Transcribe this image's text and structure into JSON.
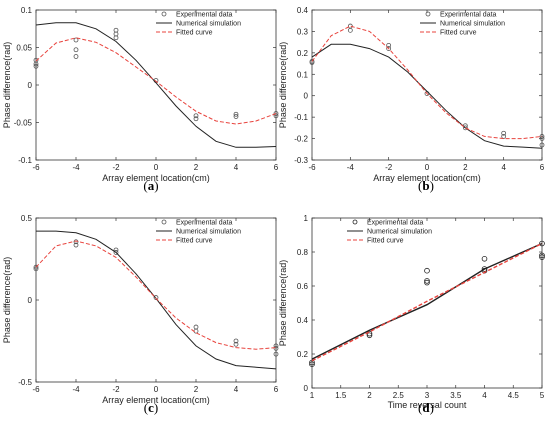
{
  "chart_data": [
    {
      "id": "a",
      "type": "line",
      "caption": "(a)",
      "xlabel": "Array element location(cm)",
      "ylabel": "Phase difference(rad)",
      "xlim": [
        -6,
        6
      ],
      "ylim": [
        -0.1,
        0.1
      ],
      "xticks": [
        -6,
        -4,
        -2,
        0,
        2,
        4,
        6
      ],
      "yticks": [
        -0.1,
        -0.05,
        0,
        0.05,
        0.1
      ],
      "xtick_labels": [
        "-6",
        "-4",
        "-2",
        "0",
        "2",
        "4",
        "6"
      ],
      "ytick_labels": [
        "-0.1",
        "-0.05",
        "0",
        "0.05",
        "0.1"
      ],
      "legend_position": "top-right",
      "legend": [
        "Experimental data",
        "Numerical simulation",
        "Fitted curve"
      ],
      "grid": false,
      "series": [
        {
          "name": "Experimental data",
          "kind": "scatter",
          "color": "#555555",
          "x": [
            -6,
            -6,
            -6,
            -4,
            -4,
            -4,
            -2,
            -2,
            -2,
            0,
            2,
            2,
            4,
            4,
            6,
            6
          ],
          "y": [
            0.033,
            0.028,
            0.025,
            0.06,
            0.047,
            0.038,
            0.073,
            0.068,
            0.063,
            0.006,
            -0.041,
            -0.045,
            -0.039,
            -0.042,
            -0.038,
            -0.041
          ]
        },
        {
          "name": "Numerical simulation",
          "kind": "line",
          "color": "#222222",
          "dash": "",
          "x": [
            -6,
            -5,
            -4,
            -3,
            -2,
            -1,
            0,
            1,
            2,
            3,
            4,
            5,
            6
          ],
          "y": [
            0.08,
            0.083,
            0.083,
            0.075,
            0.058,
            0.033,
            0.003,
            -0.028,
            -0.055,
            -0.075,
            -0.083,
            -0.083,
            -0.082
          ]
        },
        {
          "name": "Fitted curve",
          "kind": "line",
          "color": "#e8433d",
          "dash": "4,2",
          "x": [
            -6,
            -5,
            -4,
            -3,
            -2,
            -1,
            0,
            1,
            2,
            3,
            4,
            5,
            6
          ],
          "y": [
            0.032,
            0.056,
            0.063,
            0.057,
            0.043,
            0.024,
            0.005,
            -0.016,
            -0.035,
            -0.048,
            -0.052,
            -0.048,
            -0.038
          ]
        }
      ]
    },
    {
      "id": "b",
      "type": "line",
      "caption": "(b)",
      "xlabel": "Array element location(cm)",
      "ylabel": "Phase difference(rad)",
      "xlim": [
        -6,
        6
      ],
      "ylim": [
        -0.3,
        0.4
      ],
      "xticks": [
        -6,
        -4,
        -2,
        0,
        2,
        4,
        6
      ],
      "yticks": [
        -0.3,
        -0.2,
        -0.1,
        0,
        0.1,
        0.2,
        0.3,
        0.4
      ],
      "xtick_labels": [
        "-6",
        "-4",
        "-2",
        "0",
        "2",
        "4",
        "6"
      ],
      "ytick_labels": [
        "-0.3",
        "-0.2",
        "-0.1",
        "0",
        "0.1",
        "0.2",
        "0.3",
        "0.4"
      ],
      "legend_position": "top-right",
      "legend": [
        "Experimental data",
        "Numerical simulation",
        "Fitted curve"
      ],
      "grid": false,
      "series": [
        {
          "name": "Experimental data",
          "kind": "scatter",
          "color": "#555555",
          "x": [
            -6,
            -6,
            -4,
            -4,
            -2,
            -2,
            0,
            2,
            2,
            4,
            4,
            6,
            6,
            6
          ],
          "y": [
            0.16,
            0.155,
            0.325,
            0.305,
            0.235,
            0.22,
            0.01,
            -0.14,
            -0.15,
            -0.175,
            -0.19,
            -0.19,
            -0.2,
            -0.23
          ]
        },
        {
          "name": "Numerical simulation",
          "kind": "line",
          "color": "#222222",
          "dash": "",
          "x": [
            -6,
            -5,
            -4,
            -3,
            -2,
            -1,
            0,
            1,
            2,
            3,
            4,
            5,
            6
          ],
          "y": [
            0.18,
            0.24,
            0.24,
            0.22,
            0.18,
            0.11,
            0.02,
            -0.07,
            -0.15,
            -0.21,
            -0.235,
            -0.24,
            -0.245
          ]
        },
        {
          "name": "Fitted curve",
          "kind": "line",
          "color": "#e8433d",
          "dash": "4,2",
          "x": [
            -6,
            -5,
            -4,
            -3,
            -2,
            -1,
            0,
            1,
            2,
            3,
            4,
            5,
            6
          ],
          "y": [
            0.16,
            0.28,
            0.325,
            0.3,
            0.22,
            0.12,
            0.01,
            -0.08,
            -0.15,
            -0.19,
            -0.2,
            -0.2,
            -0.19
          ]
        }
      ]
    },
    {
      "id": "c",
      "type": "line",
      "caption": "(c)",
      "xlabel": "Array element location(cm)",
      "ylabel": "Phase difference(rad)",
      "xlim": [
        -6,
        6
      ],
      "ylim": [
        -0.5,
        0.5
      ],
      "xticks": [
        -6,
        -4,
        -2,
        0,
        2,
        4,
        6
      ],
      "yticks": [
        -0.5,
        0,
        0.5
      ],
      "xtick_labels": [
        "-6",
        "-4",
        "-2",
        "0",
        "2",
        "4",
        "6"
      ],
      "ytick_labels": [
        "-0.5",
        "0",
        "0.5"
      ],
      "legend_position": "top-right",
      "legend": [
        "Experimental data",
        "Numerical simulation",
        "Fitted curve"
      ],
      "grid": false,
      "series": [
        {
          "name": "Experimental data",
          "kind": "scatter",
          "color": "#555555",
          "x": [
            -6,
            -6,
            -4,
            -4,
            -2,
            -2,
            0,
            2,
            2,
            4,
            4,
            6,
            6,
            6
          ],
          "y": [
            0.2,
            0.19,
            0.355,
            0.335,
            0.305,
            0.29,
            0.015,
            -0.165,
            -0.19,
            -0.25,
            -0.27,
            -0.28,
            -0.295,
            -0.33
          ]
        },
        {
          "name": "Numerical simulation",
          "kind": "line",
          "color": "#222222",
          "dash": "",
          "x": [
            -6,
            -5,
            -4,
            -3,
            -2,
            -1,
            0,
            1,
            2,
            3,
            4,
            5,
            6
          ],
          "y": [
            0.42,
            0.42,
            0.41,
            0.37,
            0.29,
            0.16,
            0.01,
            -0.15,
            -0.28,
            -0.36,
            -0.4,
            -0.41,
            -0.42
          ]
        },
        {
          "name": "Fitted curve",
          "kind": "line",
          "color": "#e8433d",
          "dash": "4,2",
          "x": [
            -6,
            -5,
            -4,
            -3,
            -2,
            -1,
            0,
            1,
            2,
            3,
            4,
            5,
            6
          ],
          "y": [
            0.2,
            0.33,
            0.36,
            0.33,
            0.26,
            0.14,
            0.01,
            -0.11,
            -0.2,
            -0.26,
            -0.29,
            -0.3,
            -0.29
          ]
        }
      ]
    },
    {
      "id": "d",
      "type": "line",
      "caption": "(d)",
      "xlabel": "Time reversal count",
      "ylabel": "Phase difference(rad)",
      "xlim": [
        1,
        5
      ],
      "ylim": [
        0,
        1
      ],
      "xticks": [
        1,
        1.5,
        2,
        2.5,
        3,
        3.5,
        4,
        4.5,
        5
      ],
      "yticks": [
        0,
        0.2,
        0.4,
        0.6,
        0.8,
        1
      ],
      "xtick_labels": [
        "1",
        "1.5",
        "2",
        "2.5",
        "3",
        "3.5",
        "4",
        "4.5",
        "5"
      ],
      "ytick_labels": [
        "0",
        "0.2",
        "0.4",
        "0.6",
        "0.8",
        "1"
      ],
      "legend_position": "top-left",
      "legend": [
        "Experimental data",
        "Numerical simulation",
        "Fitted curve"
      ],
      "grid": false,
      "series": [
        {
          "name": "Experimental data",
          "kind": "scatter",
          "color": "#222222",
          "x": [
            1,
            1,
            2,
            2,
            3,
            3,
            3,
            4,
            4,
            4,
            5,
            5,
            5
          ],
          "y": [
            0.15,
            0.14,
            0.32,
            0.31,
            0.69,
            0.63,
            0.62,
            0.76,
            0.7,
            0.69,
            0.85,
            0.78,
            0.77
          ]
        },
        {
          "name": "Numerical simulation",
          "kind": "line",
          "color": "#222222",
          "dash": "",
          "x": [
            1,
            2,
            3,
            4,
            5
          ],
          "y": [
            0.17,
            0.34,
            0.49,
            0.7,
            0.85
          ]
        },
        {
          "name": "Fitted curve",
          "kind": "line",
          "color": "#e8433d",
          "dash": "4,2",
          "x": [
            1,
            2,
            3,
            4,
            5
          ],
          "y": [
            0.16,
            0.33,
            0.51,
            0.68,
            0.85
          ]
        }
      ]
    }
  ]
}
